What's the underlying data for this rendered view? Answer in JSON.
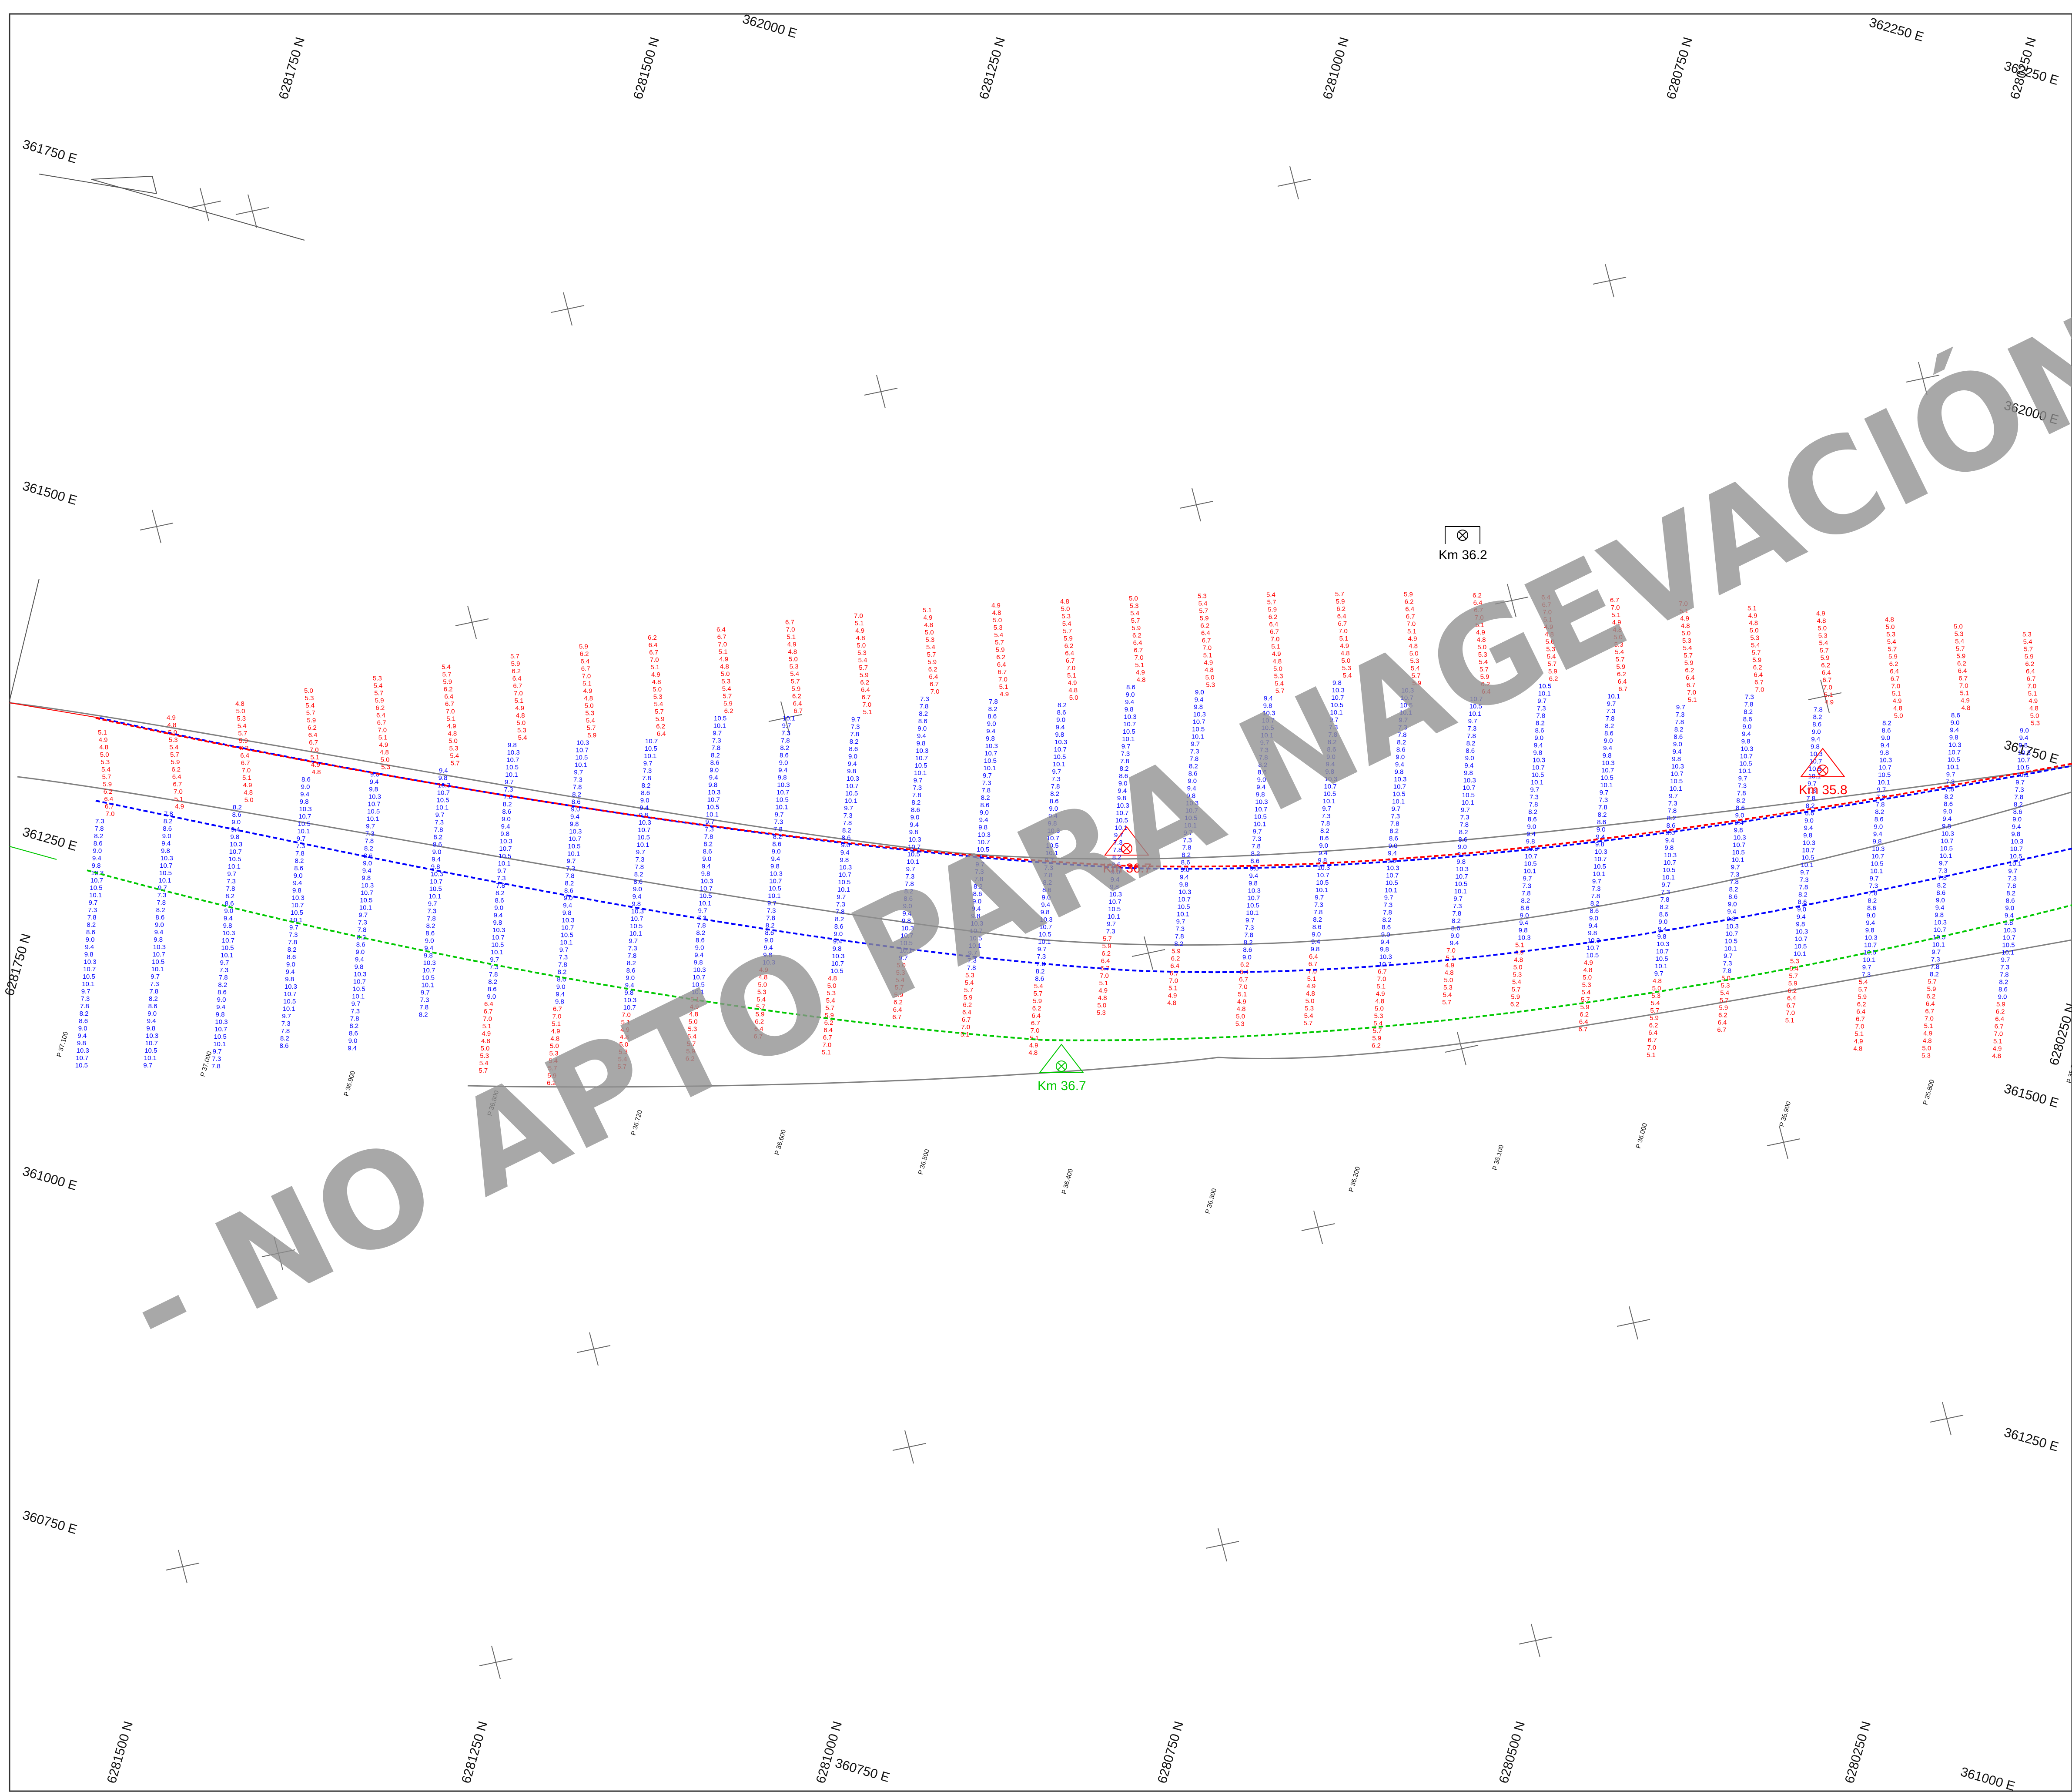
{
  "watermark": "- NO APTO PARA NAGEVACIÓN -",
  "colors": {
    "shallow": "#ff0000",
    "deep": "#0000ff",
    "contour_green": "#00c800",
    "coastline": "#808080",
    "frame": "#333333",
    "watermark": "#8f8f8f"
  },
  "easting_labels": [
    "362250 E",
    "362000 E",
    "361750 E",
    "361500 E",
    "361250 E",
    "361000 E",
    "360750 E"
  ],
  "northing_labels": [
    "6281750 N",
    "6281500 N",
    "6281250 N",
    "6281000 N",
    "6280750 N",
    "6280500 N",
    "6280250 N"
  ],
  "km_markers": [
    {
      "label": "Km 36.2",
      "color": "#000000"
    },
    {
      "label": "Km 36.7",
      "color": "#ff0000"
    },
    {
      "label": "Km 35.8",
      "color": "#ff0000"
    },
    {
      "label": "Km 36.7",
      "color": "#00c800"
    }
  ],
  "profiles": [
    "P 37.100",
    "P 37.000",
    "P 36.900",
    "P 36.800",
    "P 36.720",
    "P 36.600",
    "P 36.500",
    "P 36.400",
    "P 36.300",
    "P 36.200",
    "P 36.100",
    "P 36.000",
    "P 35.900",
    "P 35.800",
    "P 35.700"
  ],
  "soundings": {
    "shallow_sample": [
      "5.1",
      "4.9",
      "4.8",
      "5.0",
      "5.3",
      "5.4",
      "5.7",
      "5.9",
      "6.2",
      "6.4",
      "6.7",
      "7.0"
    ],
    "deep_sample": [
      "7.3",
      "7.8",
      "8.2",
      "8.6",
      "9.0",
      "9.4",
      "9.8",
      "10.3",
      "10.7",
      "10.5",
      "10.1",
      "9.7"
    ]
  }
}
